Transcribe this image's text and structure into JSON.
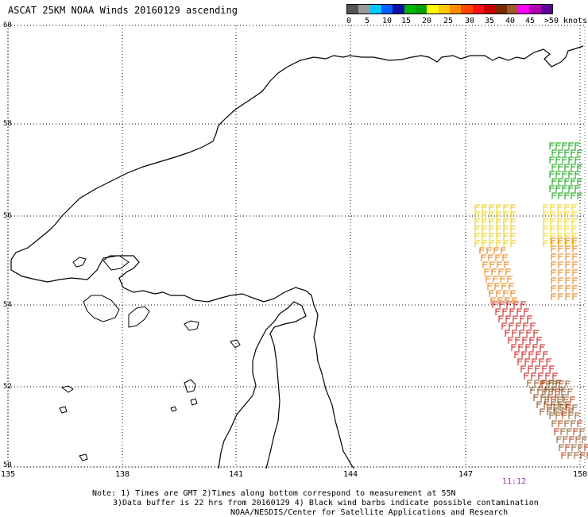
{
  "title": "ASCAT 25KM NOAA Winds 20160129 ascending",
  "colorbar": {
    "colors": [
      "#555555",
      "#9a9a9a",
      "#00c8ff",
      "#0060ff",
      "#1010a0",
      "#00b400",
      "#00a000",
      "#ffff00",
      "#ffc800",
      "#ff8c00",
      "#ff4500",
      "#ff1010",
      "#c80000",
      "#7a2a00",
      "#9b5a2a",
      "#ff00ff",
      "#b000b0",
      "#60009b"
    ],
    "labels": [
      "0",
      "5",
      "10",
      "15",
      "20",
      "25",
      "30",
      "35",
      "40",
      "45",
      ">50 knots"
    ]
  },
  "axes": {
    "lat_labels": [
      "60",
      "58",
      "56",
      "54",
      "52",
      "50"
    ],
    "lon_labels": [
      "135",
      "138",
      "141",
      "144",
      "147",
      "150"
    ]
  },
  "swath_time": "11:12",
  "notes": {
    "line1": "Note: 1) Times are GMT 2)Times along bottom correspond to measurement at 55N",
    "line2": "3)Data buffer is 22 hrs from 20160129 4) Black wind barbs indicate possible contamination",
    "line3": "NOAA/NESDIS/Center for Satellite Applications and Research"
  }
}
